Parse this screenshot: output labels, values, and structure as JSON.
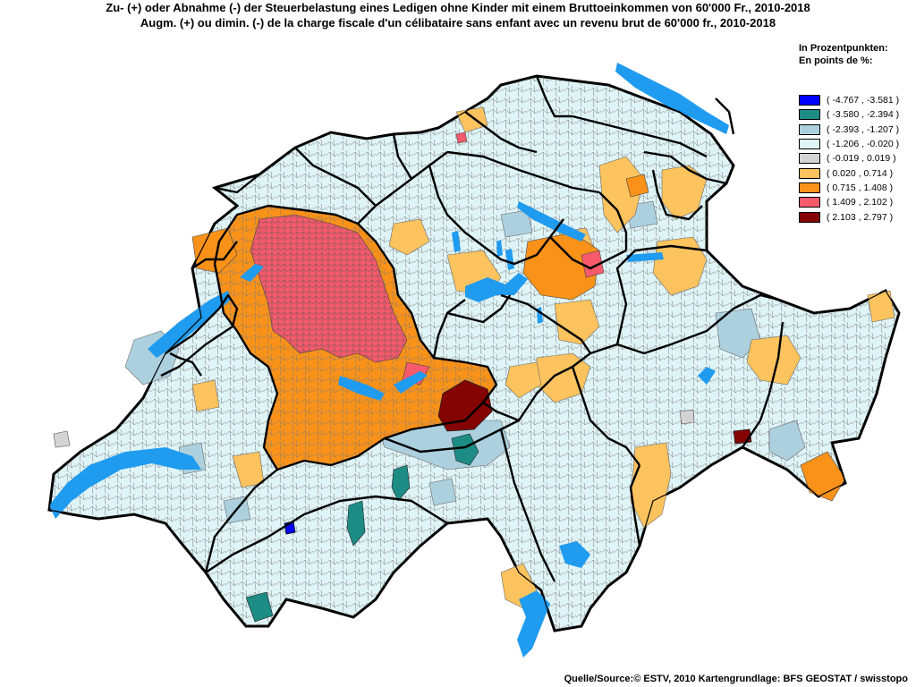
{
  "title": {
    "line_de": "Zu- (+) oder Abnahme (-) der Steuerbelastung eines Ledigen ohne Kinder mit einem Bruttoeinkommen von 60'000 Fr., 2010-2018",
    "line_fr": "Augm. (+) ou dimin. (-) de la charge fiscale d'un célibataire sans enfant avec un revenu brut de 60'000 fr., 2010-2018"
  },
  "legend": {
    "title_de": "In Prozentpunkten:",
    "title_fr": "En points de %:",
    "classes": [
      {
        "label": "( -4.767 , -3.581 )",
        "color": "#0000ff"
      },
      {
        "label": "( -3.580 , -2.394 )",
        "color": "#1c8c84"
      },
      {
        "label": "( -2.393 , -1.207 )",
        "color": "#acd0de"
      },
      {
        "label": "( -1.206 , -0.020 )",
        "color": "#dff4f7"
      },
      {
        "label": "( -0.019 , 0.019 )",
        "color": "#d4d4d4"
      },
      {
        "label": "( 0.020 , 0.714 )",
        "color": "#fcc35e"
      },
      {
        "label": "( 0.715 , 1.408 )",
        "color": "#fa9219"
      },
      {
        "label": "( 1.409 , 2.102 )",
        "color": "#f65a6b"
      },
      {
        "label": "( 2.103 , 2.797 )",
        "color": "#840303"
      }
    ]
  },
  "map": {
    "lake_color": "#1f9bf0",
    "border_color": "#000000"
  },
  "source": "Quelle/Source:© ESTV, 2010 Kartengrundlage: BFS GEOSTAT / swisstopo"
}
